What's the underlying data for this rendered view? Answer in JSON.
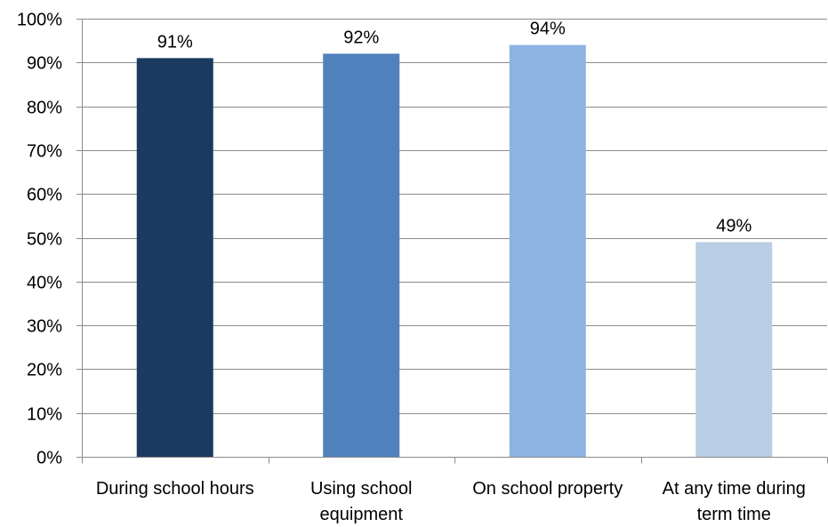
{
  "chart_data": {
    "type": "bar",
    "title": "",
    "xlabel": "",
    "ylabel": "",
    "categories": [
      [
        "During school hours"
      ],
      [
        "Using school",
        "equipment"
      ],
      [
        "On school property"
      ],
      [
        "At any time during",
        "term time"
      ]
    ],
    "values": [
      91,
      92,
      94,
      49
    ],
    "value_labels": [
      "91%",
      "92%",
      "94%",
      "49%"
    ],
    "colors": [
      "#1b3a5f",
      "#4f81bd",
      "#8db3e2",
      "#b9cde5"
    ],
    "ylim": [
      0,
      100
    ],
    "yticks": [
      0,
      10,
      20,
      30,
      40,
      50,
      60,
      70,
      80,
      90,
      100
    ],
    "ytick_labels": [
      "0%",
      "10%",
      "20%",
      "30%",
      "40%",
      "50%",
      "60%",
      "70%",
      "80%",
      "90%",
      "100%"
    ],
    "grid": true,
    "legend": "none"
  }
}
